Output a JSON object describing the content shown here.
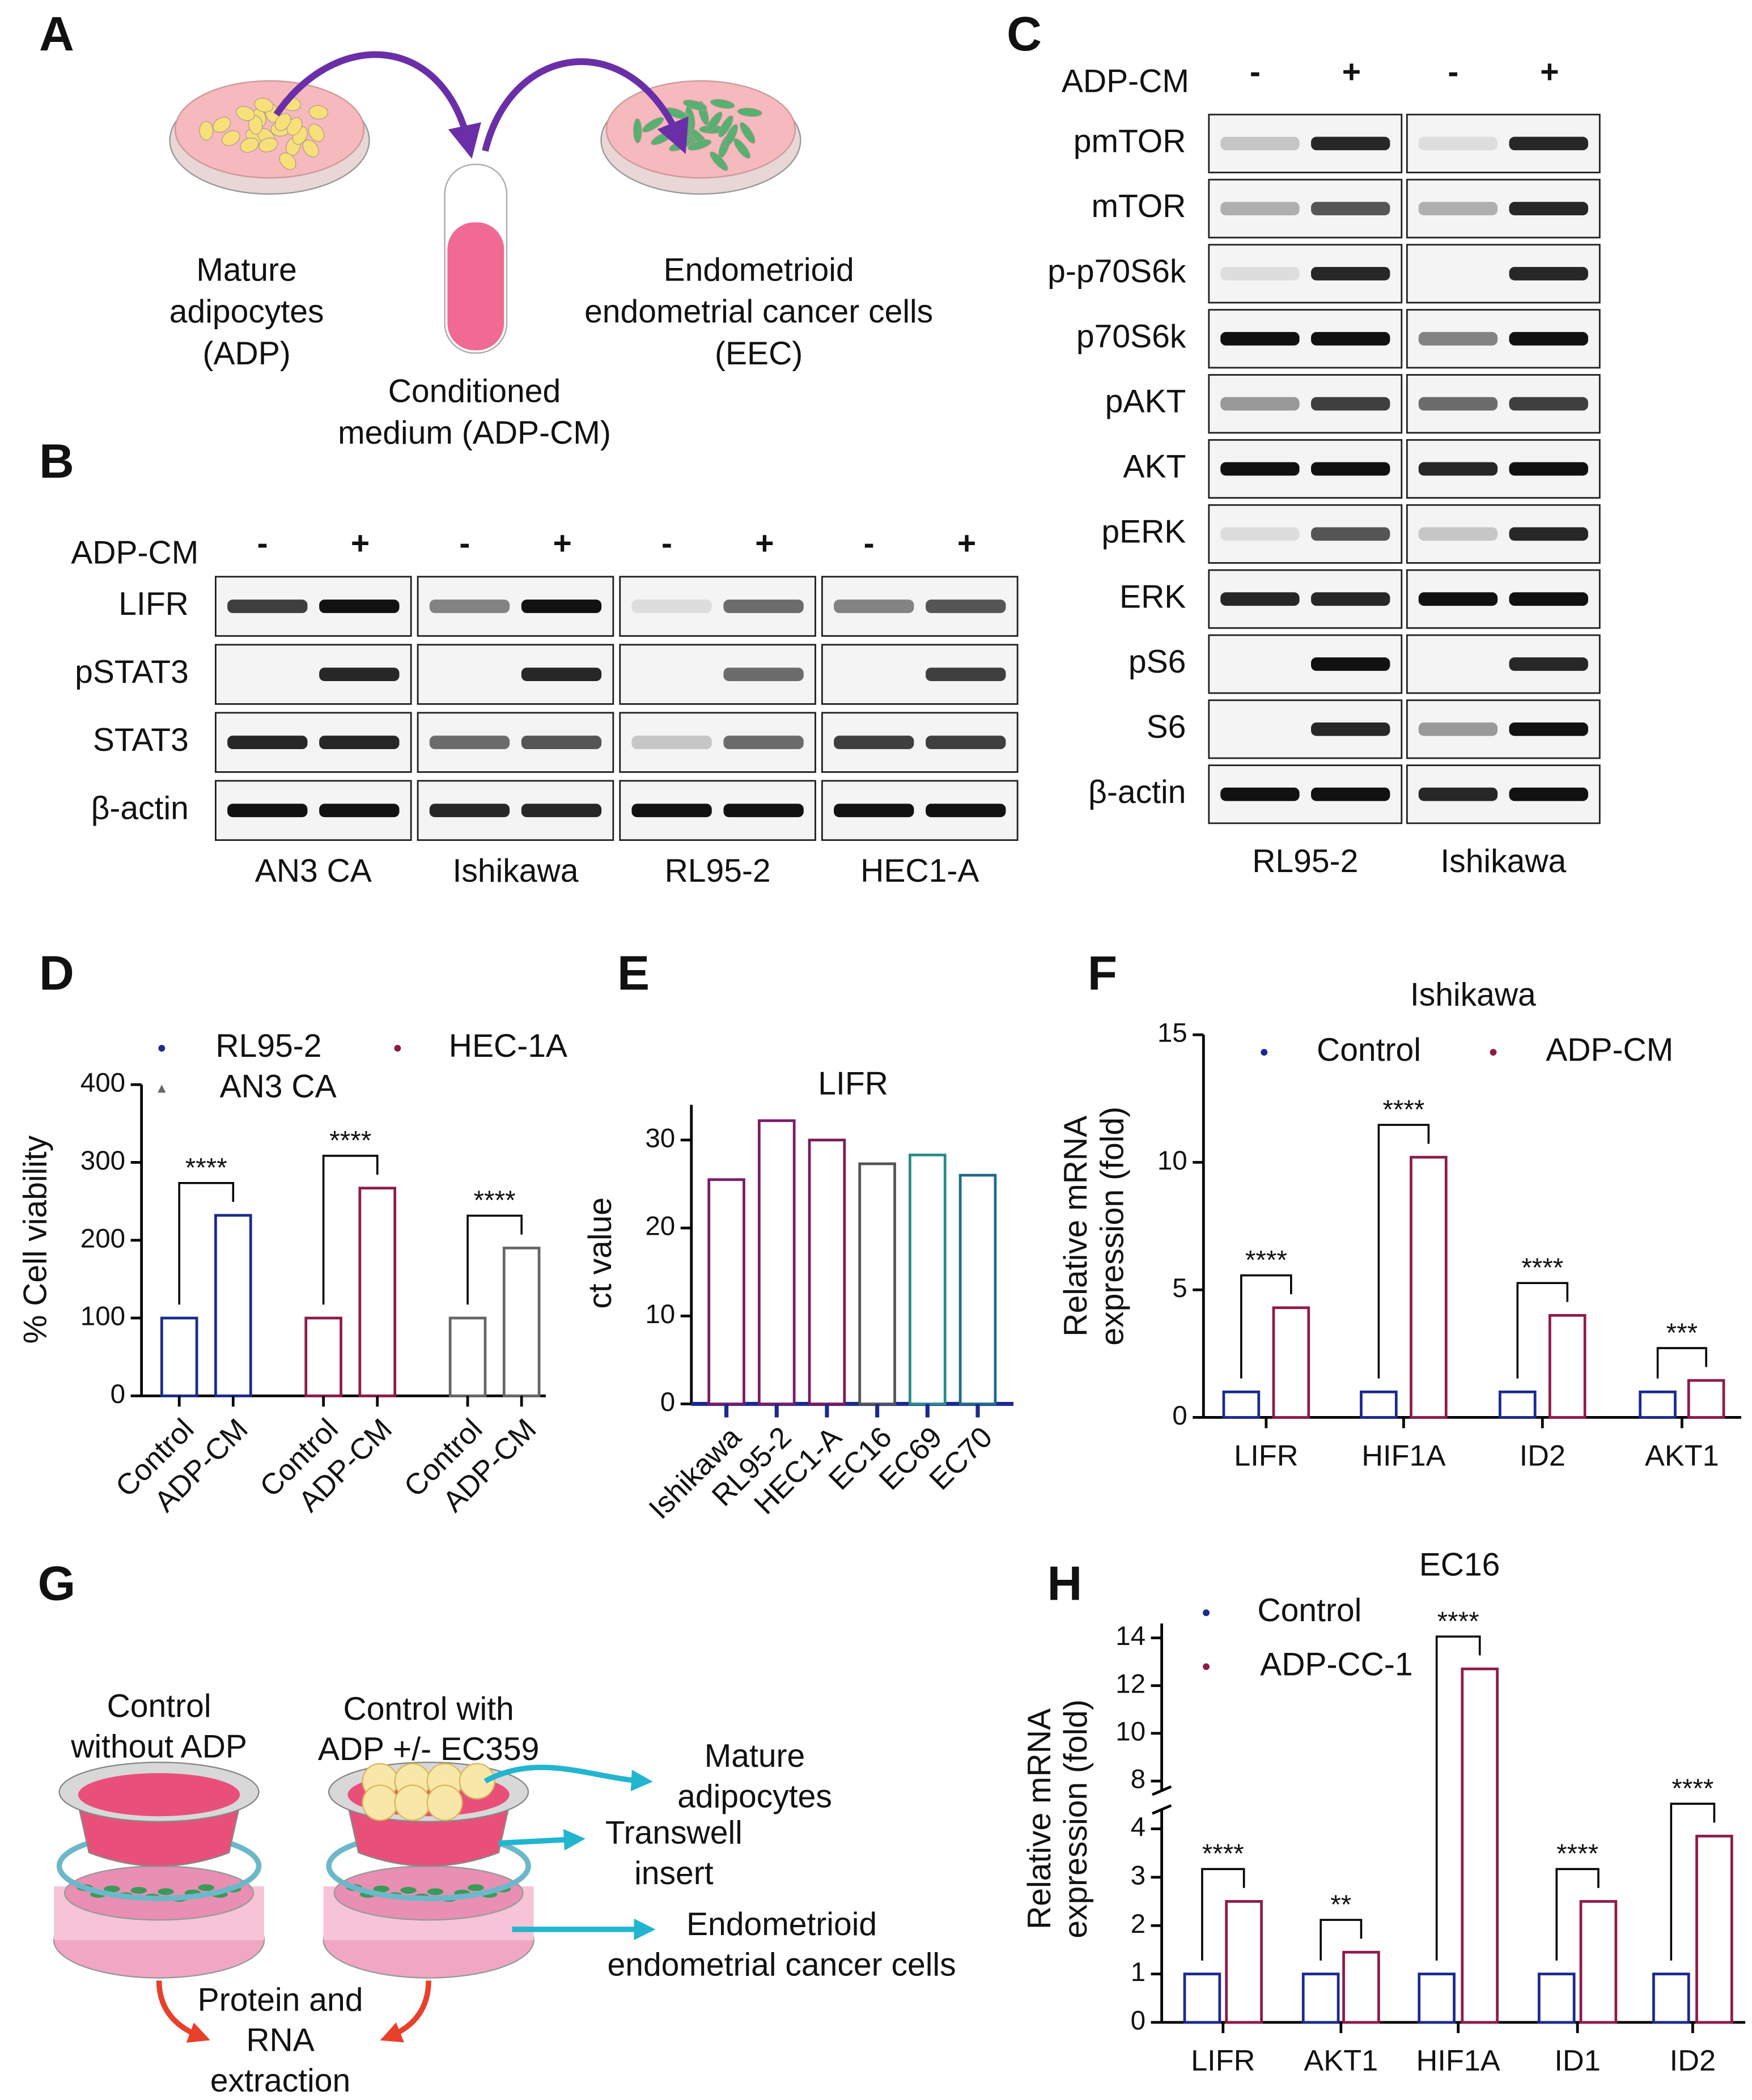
{
  "figure": {
    "A": {
      "label": "A",
      "left_text": [
        "Mature",
        "adipocytes",
        "(ADP)"
      ],
      "middle_text": [
        "Conditioned",
        "medium (ADP-CM)"
      ],
      "right_text": [
        "Endometrioid",
        "endometrial cancer cells",
        "(EEC)"
      ]
    },
    "B": {
      "label": "B",
      "treatment": "ADP-CM",
      "lanes": [
        "-",
        "+"
      ],
      "rows": [
        "LIFR",
        "pSTAT3",
        "STAT3",
        "β-actin"
      ],
      "cell_lines": [
        "AN3 CA",
        "Ishikawa",
        "RL95-2",
        "HEC1-A"
      ]
    },
    "C": {
      "label": "C",
      "treatment": "ADP-CM",
      "lanes": [
        "-",
        "+"
      ],
      "rows": [
        "pmTOR",
        "mTOR",
        "p-p70S6k",
        "p70S6k",
        "pAKT",
        "AKT",
        "pERK",
        "ERK",
        "pS6",
        "S6",
        "β-actin"
      ],
      "cell_lines": [
        "RL95-2",
        "Ishikawa"
      ]
    },
    "G": {
      "label": "G",
      "captions": [
        [
          "Control",
          "without ADP"
        ],
        [
          "Control with",
          "ADP +/- EC359"
        ],
        [
          "Mature",
          "adipocytes"
        ],
        [
          "Transwell",
          "insert"
        ],
        [
          "Endometrioid",
          "endometrial cancer cells"
        ],
        [
          "Protein and",
          "RNA",
          "extraction"
        ]
      ]
    }
  },
  "chart_data": [
    {
      "type": "bar",
      "panel_label": "D",
      "ylabel": "% Cell viability",
      "ylim": [
        0,
        400
      ],
      "yticks": [
        0,
        100,
        200,
        300,
        400
      ],
      "categories": [
        "Control",
        "ADP-CM"
      ],
      "series": [
        {
          "name": "RL95-2",
          "color": "#1c2a8c",
          "values": [
            100,
            232
          ]
        },
        {
          "name": "HEC-1A",
          "color": "#8e1b4a",
          "values": [
            100,
            267
          ]
        },
        {
          "name": "AN3 CA",
          "color": "#666666",
          "values": [
            100,
            190
          ]
        }
      ],
      "annotations": [
        "****",
        "****",
        "****"
      ]
    },
    {
      "type": "bar",
      "panel_label": "E",
      "title": "LIFR",
      "ylabel": "ct value",
      "ylim": [
        0,
        34
      ],
      "yticks": [
        0,
        10,
        20,
        30
      ],
      "categories": [
        "Ishikawa",
        "RL95-2",
        "HEC1-A",
        "EC16",
        "EC69",
        "EC70"
      ],
      "values": [
        25.5,
        32.2,
        30,
        27.3,
        28.3,
        26
      ],
      "colors": [
        "#7a1b6b",
        "#7a1b6b",
        "#7a1b5a",
        "#555555",
        "#2a8c8c",
        "#1f6b8c"
      ]
    },
    {
      "type": "bar",
      "panel_label": "F",
      "title": "Ishikawa",
      "ylabel": [
        "Relative mRNA",
        "expression (fold)"
      ],
      "ylim": [
        0,
        15
      ],
      "yticks": [
        0,
        5,
        10,
        15
      ],
      "categories": [
        "LIFR",
        "HIF1A",
        "ID2",
        "AKT1"
      ],
      "series": [
        {
          "name": "Control",
          "color": "#1c2a8c",
          "values": [
            1,
            1,
            1,
            1
          ]
        },
        {
          "name": "ADP-CM",
          "color": "#8e1b4a",
          "values": [
            4.3,
            10.2,
            4.0,
            1.45
          ]
        }
      ],
      "annotations": [
        "****",
        "****",
        "****",
        "***"
      ]
    },
    {
      "type": "bar",
      "panel_label": "H",
      "title": "EC16",
      "ylabel": [
        "Relative mRNA",
        "expression (fold)"
      ],
      "ylim": [
        0,
        14.6
      ],
      "ybreak": [
        4.4,
        7.6
      ],
      "yticks": [
        0,
        1,
        2,
        3,
        4,
        8,
        10,
        12,
        14
      ],
      "categories": [
        "LIFR",
        "AKT1",
        "HIF1A",
        "ID1",
        "ID2"
      ],
      "series": [
        {
          "name": "Control",
          "color": "#1c2a8c",
          "values": [
            1,
            1,
            1,
            1,
            1
          ]
        },
        {
          "name": "ADP-CC-1",
          "color": "#8e1b4a",
          "values": [
            2.5,
            1.45,
            12.7,
            2.5,
            3.85
          ]
        }
      ],
      "annotations": [
        "****",
        "**",
        "****",
        "****",
        "****"
      ]
    }
  ]
}
